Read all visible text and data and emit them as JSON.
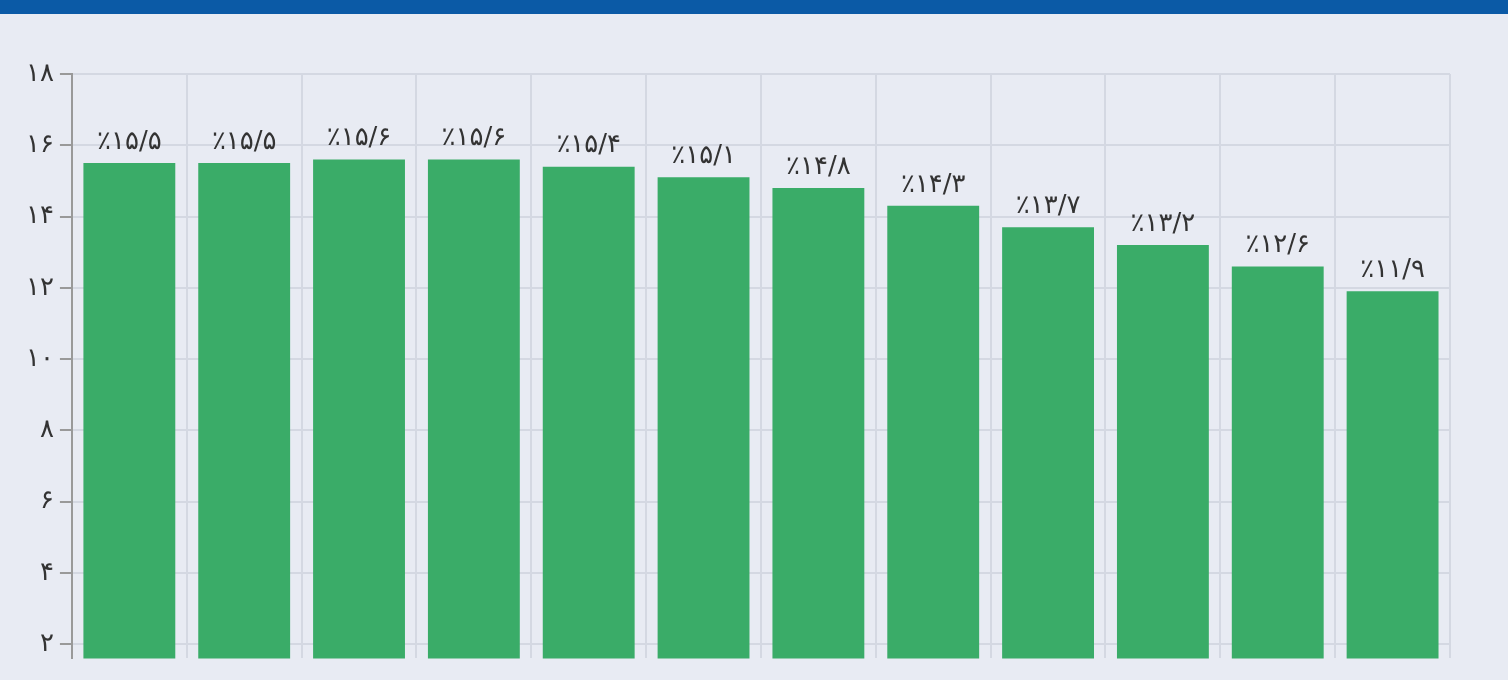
{
  "chart_data": {
    "type": "bar",
    "categories": [
      null,
      null,
      null,
      null,
      null,
      null,
      null,
      null,
      null,
      null,
      null,
      null
    ],
    "values": [
      15.5,
      15.5,
      15.6,
      15.6,
      15.4,
      15.1,
      14.8,
      14.3,
      13.7,
      13.2,
      12.6,
      11.9
    ],
    "value_labels": [
      "٪۱۵/۵",
      "٪۱۵/۵",
      "٪۱۵/۶",
      "٪۱۵/۶",
      "٪۱۵/۴",
      "٪۱۵/۱",
      "٪۱۴/۸",
      "٪۱۴/۳",
      "٪۱۳/۷",
      "٪۱۳/۲",
      "٪۱۲/۶",
      "٪۱۱/۹"
    ],
    "color": "#3aac68",
    "ylim": [
      1.6,
      18
    ],
    "yticks": [
      {
        "value": 2,
        "label": "۲"
      },
      {
        "value": 4,
        "label": "۴"
      },
      {
        "value": 6,
        "label": "۶"
      },
      {
        "value": 8,
        "label": "۸"
      },
      {
        "value": 10,
        "label": "۱۰"
      },
      {
        "value": 12,
        "label": "۱۲"
      },
      {
        "value": 14,
        "label": "۱۴"
      },
      {
        "value": 16,
        "label": "۱۶"
      },
      {
        "value": 18,
        "label": "۱۸"
      }
    ],
    "grid": true,
    "tick_labels": "y"
  }
}
